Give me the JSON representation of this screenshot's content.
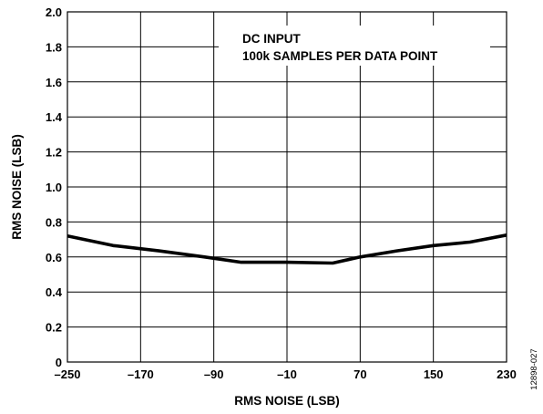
{
  "chart_data": {
    "type": "line",
    "title": "",
    "xlabel": "RMS NOISE (LSB)",
    "ylabel": "RMS NOISE (LSB)",
    "xlim": [
      -250,
      230
    ],
    "ylim": [
      0,
      2.0
    ],
    "xticks": [
      -250,
      -170,
      -90,
      -10,
      70,
      150,
      230
    ],
    "xtick_labels": [
      "–250",
      "–170",
      "–90",
      "–10",
      "70",
      "150",
      "230"
    ],
    "yticks": [
      0,
      0.2,
      0.4,
      0.6,
      0.8,
      1.0,
      1.2,
      1.4,
      1.6,
      1.8,
      2.0
    ],
    "ytick_labels": [
      "0",
      "0.2",
      "0.4",
      "0.6",
      "0.8",
      "1.0",
      "1.2",
      "1.4",
      "1.6",
      "1.8",
      "2.0"
    ],
    "grid": true,
    "annotations": [
      "DC INPUT",
      "100k SAMPLES PER DATA POINT"
    ],
    "figure_id": "12898-027",
    "series": [
      {
        "x": [
          -250,
          -200,
          -150,
          -100,
          -60,
          -10,
          40,
          70,
          110,
          150,
          190,
          230
        ],
        "y": [
          0.72,
          0.665,
          0.635,
          0.6,
          0.57,
          0.57,
          0.565,
          0.6,
          0.635,
          0.665,
          0.685,
          0.725
        ]
      }
    ]
  }
}
